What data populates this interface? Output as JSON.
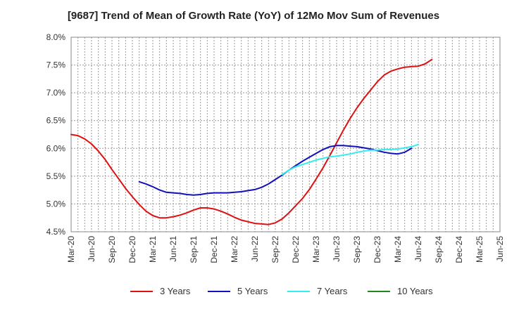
{
  "chart_data": {
    "type": "line",
    "title": "[9687]  Trend of Mean of Growth Rate (YoY) of 12Mo Mov Sum of Revenues",
    "xlabel": "",
    "ylabel": "",
    "ylim": [
      4.5,
      8.0
    ],
    "yticks": [
      "4.5%",
      "5.0%",
      "5.5%",
      "6.0%",
      "6.5%",
      "7.0%",
      "7.5%",
      "8.0%"
    ],
    "ytick_values": [
      4.5,
      5.0,
      5.5,
      6.0,
      6.5,
      7.0,
      7.5,
      8.0
    ],
    "xticks": [
      "Mar-20",
      "Jun-20",
      "Sep-20",
      "Dec-20",
      "Mar-21",
      "Jun-21",
      "Sep-21",
      "Dec-21",
      "Mar-22",
      "Jun-22",
      "Sep-22",
      "Dec-22",
      "Mar-23",
      "Jun-23",
      "Sep-23",
      "Dec-23",
      "Mar-24",
      "Jun-24",
      "Sep-24",
      "Dec-24",
      "Mar-25",
      "Jun-25"
    ],
    "grid": true,
    "legend_position": "bottom",
    "series": [
      {
        "name": "3 Years",
        "color": "#dd1111",
        "start_index": 0,
        "values": [
          6.25,
          6.23,
          6.17,
          6.08,
          5.95,
          5.8,
          5.62,
          5.45,
          5.28,
          5.13,
          4.99,
          4.87,
          4.79,
          4.75,
          4.75,
          4.77,
          4.8,
          4.84,
          4.89,
          4.93,
          4.93,
          4.91,
          4.87,
          4.82,
          4.76,
          4.71,
          4.68,
          4.65,
          4.64,
          4.63,
          4.66,
          4.73,
          4.84,
          4.97,
          5.1,
          5.26,
          5.45,
          5.65,
          5.87,
          6.1,
          6.33,
          6.54,
          6.73,
          6.9,
          7.05,
          7.2,
          7.32,
          7.39,
          7.43,
          7.46,
          7.47,
          7.48,
          7.52,
          7.6
        ]
      },
      {
        "name": "5 Years",
        "color": "#1111bb",
        "start_index": 10,
        "values": [
          5.4,
          5.36,
          5.31,
          5.25,
          5.21,
          5.2,
          5.19,
          5.17,
          5.16,
          5.17,
          5.19,
          5.2,
          5.2,
          5.2,
          5.21,
          5.22,
          5.24,
          5.26,
          5.3,
          5.36,
          5.44,
          5.52,
          5.61,
          5.69,
          5.77,
          5.84,
          5.91,
          5.98,
          6.03,
          6.05,
          6.05,
          6.04,
          6.03,
          6.01,
          5.99,
          5.96,
          5.93,
          5.91,
          5.9,
          5.93,
          6.0
        ]
      },
      {
        "name": "7 Years",
        "color": "#33eeee",
        "start_index": 31,
        "values": [
          5.53,
          5.61,
          5.67,
          5.71,
          5.75,
          5.79,
          5.82,
          5.85,
          5.86,
          5.88,
          5.9,
          5.93,
          5.95,
          5.97,
          5.97,
          5.98,
          5.98,
          5.99,
          6.01,
          6.03,
          6.07
        ]
      },
      {
        "name": "10 Years",
        "color": "#228822",
        "start_index": 0,
        "values": []
      }
    ]
  }
}
